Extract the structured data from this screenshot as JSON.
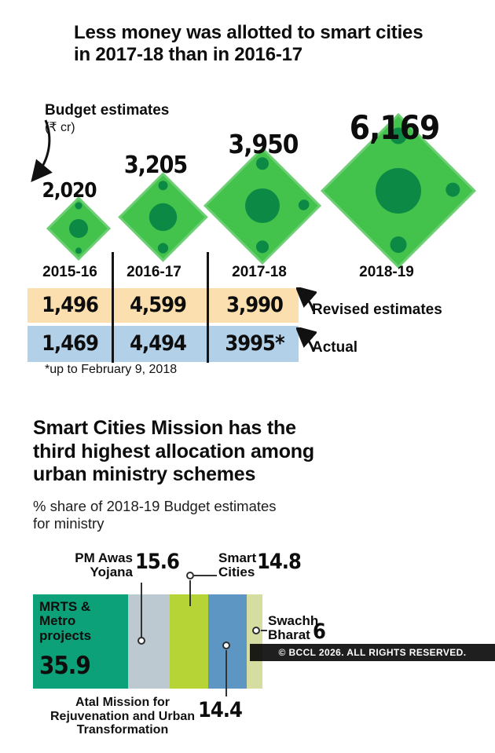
{
  "watermark": "© BCCL 2026. ALL RIGHTS RESERVED.",
  "colors": {
    "note_green": "#43c24c",
    "note_coin_green": "#0c8a45",
    "revised_row_bg": "#fbdfae",
    "actual_row_bg": "#b3d0e9",
    "watermark_bg": "#000000"
  },
  "chart_data": [
    {
      "type": "bar",
      "subtype": "pictogram-money-notes",
      "title": "Less money was allotted to smart cities in 2017-18 than in 2016-17",
      "title_lines": [
        "Less money was allotted to smart cities",
        "in 2017-18 than in 2016-17"
      ],
      "legend_unit": "(₹ cr)",
      "categories": [
        "2015-16",
        "2016-17",
        "2017-18",
        "2018-19"
      ],
      "series": [
        {
          "name": "Budget estimates",
          "values": [
            2020,
            3205,
            3950,
            6169
          ],
          "display": [
            "2,020",
            "3,205",
            "3,950",
            "6,169"
          ]
        },
        {
          "name": "Revised estimates",
          "values": [
            1496,
            4599,
            3990,
            null
          ],
          "display": [
            "1,496",
            "4,599",
            "3,990",
            ""
          ]
        },
        {
          "name": "Actual",
          "values": [
            1469,
            4494,
            3995,
            null
          ],
          "display": [
            "1,469",
            "4,494",
            "3995*",
            ""
          ]
        }
      ],
      "footnote": "*up to February 9, 2018"
    },
    {
      "type": "bar",
      "subtype": "stacked-horizontal",
      "title": "Smart Cities Mission has the third highest allocation among urban ministry schemes",
      "title_lines": [
        "Smart Cities Mission has the",
        "third highest allocation among",
        "urban ministry schemes"
      ],
      "subtitle": "% share of 2018-19 Budget estimates for ministry",
      "subtitle_lines": [
        "% share of 2018-19 Budget estimates",
        "for ministry"
      ],
      "unit": "%",
      "segments": [
        {
          "label": "MRTS & Metro projects",
          "value": 35.9,
          "display": "35.9",
          "color": "#0ca178"
        },
        {
          "label": "PM Awas Yojana",
          "value": 15.6,
          "display": "15.6",
          "color": "#bdc9d1"
        },
        {
          "label": "Smart Cities",
          "value": 14.8,
          "display": "14.8",
          "color": "#b6d435"
        },
        {
          "label": "Atal Mission for Rejuvenation and Urban Transformation",
          "value": 14.4,
          "display": "14.4",
          "color": "#5e96c3"
        },
        {
          "label": "Swachh Bharat",
          "value": 6,
          "display": "6",
          "color": "#d5dea0"
        }
      ]
    }
  ]
}
